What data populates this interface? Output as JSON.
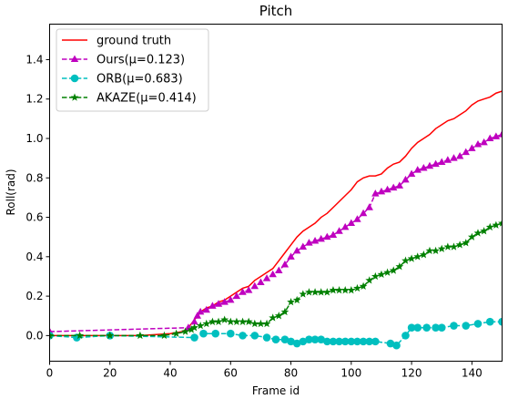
{
  "chart_data": {
    "type": "line",
    "title": "Pitch",
    "xlabel": "Frame id",
    "ylabel": "Roll(rad)",
    "xlim": [
      0,
      150
    ],
    "ylim": [
      -0.13,
      1.58
    ],
    "xticks": [
      "0",
      "20",
      "40",
      "60",
      "80",
      "100",
      "120",
      "140"
    ],
    "xtick_values": [
      0,
      20,
      40,
      60,
      80,
      100,
      120,
      140
    ],
    "yticks": [
      "0.0",
      "0.2",
      "0.4",
      "0.6",
      "0.8",
      "1.0",
      "1.2",
      "1.4"
    ],
    "ytick_values": [
      0.0,
      0.2,
      0.4,
      0.6,
      0.8,
      1.0,
      1.2,
      1.4
    ],
    "grid": false,
    "legend_position": "top-left",
    "series": [
      {
        "name": "ground truth",
        "color": "#ff0000",
        "dash": "solid",
        "marker": "none",
        "x": [
          0,
          10,
          20,
          30,
          40,
          44,
          46,
          48,
          50,
          52,
          54,
          56,
          58,
          60,
          62,
          64,
          66,
          68,
          70,
          72,
          74,
          76,
          78,
          80,
          82,
          84,
          86,
          88,
          90,
          92,
          94,
          96,
          98,
          100,
          102,
          104,
          106,
          108,
          110,
          112,
          114,
          116,
          118,
          120,
          122,
          124,
          126,
          128,
          130,
          132,
          134,
          136,
          138,
          140,
          142,
          144,
          146,
          148,
          150
        ],
        "y": [
          0.0,
          0.0,
          0.0,
          0.0,
          0.01,
          0.02,
          0.04,
          0.08,
          0.12,
          0.14,
          0.15,
          0.17,
          0.18,
          0.2,
          0.22,
          0.24,
          0.25,
          0.28,
          0.3,
          0.32,
          0.34,
          0.38,
          0.42,
          0.46,
          0.5,
          0.53,
          0.55,
          0.57,
          0.6,
          0.62,
          0.65,
          0.68,
          0.71,
          0.74,
          0.78,
          0.8,
          0.81,
          0.81,
          0.82,
          0.85,
          0.87,
          0.88,
          0.91,
          0.95,
          0.98,
          1.0,
          1.02,
          1.05,
          1.07,
          1.09,
          1.1,
          1.12,
          1.14,
          1.17,
          1.19,
          1.2,
          1.21,
          1.23,
          1.24
        ]
      },
      {
        "name": "Ours(μ=0.123)",
        "color": "#bf00bf",
        "dash": "dashed",
        "marker": "triangle",
        "x": [
          0,
          46,
          48,
          49,
          50,
          52,
          54,
          56,
          58,
          60,
          62,
          64,
          66,
          68,
          70,
          72,
          74,
          76,
          78,
          80,
          82,
          84,
          86,
          88,
          90,
          92,
          94,
          96,
          98,
          100,
          102,
          104,
          106,
          108,
          110,
          112,
          114,
          116,
          118,
          120,
          122,
          124,
          126,
          128,
          130,
          132,
          134,
          136,
          138,
          140,
          142,
          144,
          146,
          148,
          150
        ],
        "y": [
          0.02,
          0.04,
          0.07,
          0.1,
          0.12,
          0.13,
          0.15,
          0.16,
          0.17,
          0.18,
          0.2,
          0.22,
          0.23,
          0.25,
          0.27,
          0.29,
          0.31,
          0.33,
          0.36,
          0.4,
          0.43,
          0.45,
          0.47,
          0.48,
          0.49,
          0.5,
          0.51,
          0.53,
          0.55,
          0.57,
          0.59,
          0.62,
          0.65,
          0.72,
          0.73,
          0.74,
          0.75,
          0.76,
          0.79,
          0.82,
          0.84,
          0.85,
          0.86,
          0.87,
          0.88,
          0.89,
          0.9,
          0.91,
          0.93,
          0.95,
          0.97,
          0.98,
          1.0,
          1.01,
          1.02
        ]
      },
      {
        "name": "ORB(μ=0.683)",
        "color": "#00bfbf",
        "dash": "dashed",
        "marker": "circle",
        "x": [
          0,
          9,
          20,
          48,
          51,
          55,
          60,
          64,
          68,
          72,
          75,
          78,
          80,
          82,
          84,
          86,
          88,
          90,
          92,
          94,
          96,
          98,
          100,
          102,
          104,
          106,
          108,
          113,
          115,
          118,
          120,
          122,
          125,
          128,
          130,
          134,
          138,
          142,
          146,
          150
        ],
        "y": [
          0.0,
          -0.01,
          0.0,
          -0.01,
          0.01,
          0.01,
          0.01,
          0.0,
          0.0,
          -0.01,
          -0.02,
          -0.02,
          -0.03,
          -0.04,
          -0.03,
          -0.02,
          -0.02,
          -0.02,
          -0.03,
          -0.03,
          -0.03,
          -0.03,
          -0.03,
          -0.03,
          -0.03,
          -0.03,
          -0.03,
          -0.04,
          -0.05,
          0.0,
          0.04,
          0.04,
          0.04,
          0.04,
          0.04,
          0.05,
          0.05,
          0.06,
          0.07,
          0.07
        ]
      },
      {
        "name": "AKAZE(μ=0.414)",
        "color": "#008000",
        "dash": "dashed",
        "marker": "star",
        "x": [
          0,
          10,
          20,
          30,
          38,
          42,
          45,
          47,
          48,
          50,
          52,
          54,
          56,
          58,
          60,
          62,
          64,
          66,
          68,
          70,
          72,
          74,
          76,
          78,
          80,
          82,
          84,
          86,
          88,
          90,
          92,
          94,
          96,
          98,
          100,
          102,
          104,
          106,
          108,
          110,
          112,
          114,
          116,
          118,
          120,
          122,
          124,
          126,
          128,
          130,
          132,
          134,
          136,
          138,
          140,
          142,
          144,
          146,
          148,
          150
        ],
        "y": [
          0.0,
          0.0,
          0.0,
          0.0,
          0.0,
          0.01,
          0.02,
          0.03,
          0.04,
          0.05,
          0.06,
          0.07,
          0.07,
          0.08,
          0.07,
          0.07,
          0.07,
          0.07,
          0.06,
          0.06,
          0.06,
          0.09,
          0.1,
          0.12,
          0.17,
          0.18,
          0.21,
          0.22,
          0.22,
          0.22,
          0.22,
          0.23,
          0.23,
          0.23,
          0.23,
          0.24,
          0.25,
          0.28,
          0.3,
          0.31,
          0.32,
          0.33,
          0.35,
          0.38,
          0.39,
          0.4,
          0.41,
          0.43,
          0.43,
          0.44,
          0.45,
          0.45,
          0.46,
          0.47,
          0.5,
          0.52,
          0.53,
          0.55,
          0.56,
          0.57
        ]
      }
    ]
  }
}
